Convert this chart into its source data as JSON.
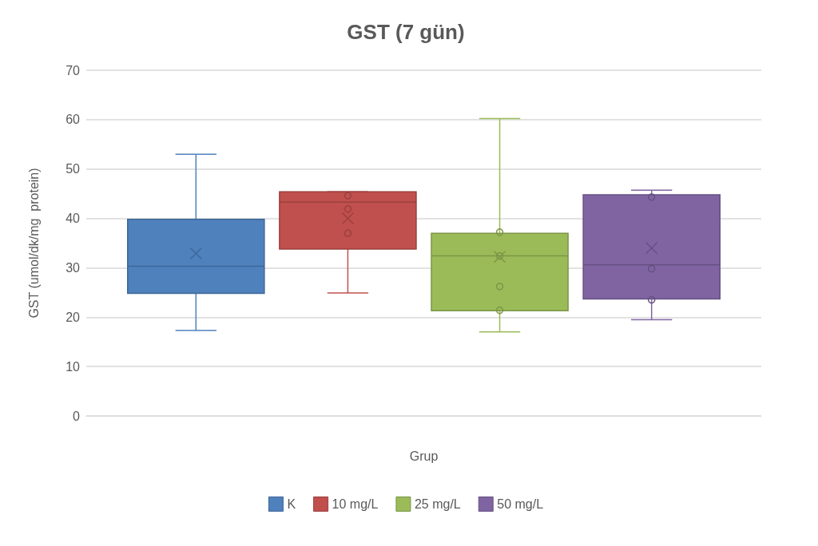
{
  "chart_data": {
    "type": "box",
    "title": "GST (7 gün)",
    "xlabel": "Grup",
    "ylabel": "GST (umol/dk/mg  protein)",
    "categories": [
      null
    ],
    "ylim": [
      0,
      70
    ],
    "yticks": [
      0,
      10,
      20,
      30,
      40,
      50,
      60,
      70
    ],
    "grid": "y",
    "legend": "bottom",
    "series": [
      {
        "name": "K",
        "color": "#4f81bd",
        "boxes": [
          {
            "low": 17.3,
            "q1": 24.8,
            "median": 30.3,
            "q3": 39.8,
            "high": 53.0,
            "mean": 32.9
          }
        ]
      },
      {
        "name": "10 mg/L",
        "color": "#c0504d",
        "boxes": [
          {
            "low": 24.9,
            "q1": 33.8,
            "median": 43.3,
            "q3": 45.4,
            "high": 45.4,
            "mean": 40.0,
            "outliers": [
              44.6,
              41.9,
              37.0
            ]
          }
        ]
      },
      {
        "name": "25 mg/L",
        "color": "#9bbb59",
        "boxes": [
          {
            "low": 17.0,
            "q1": 21.3,
            "median": 32.4,
            "q3": 37.0,
            "high": 60.2,
            "mean": 32.2,
            "outliers": [
              37.2,
              32.4,
              26.2,
              21.4
            ]
          }
        ]
      },
      {
        "name": "50 mg/L",
        "color": "#8064a2",
        "boxes": [
          {
            "low": 19.5,
            "q1": 23.7,
            "median": 30.6,
            "q3": 44.8,
            "high": 45.7,
            "mean": 34.0,
            "outliers": [
              44.3,
              29.8,
              23.5
            ]
          }
        ]
      }
    ]
  }
}
